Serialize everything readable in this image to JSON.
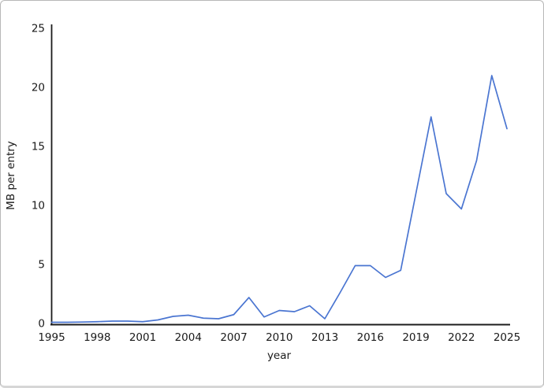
{
  "frame": {
    "background": "#ffffff",
    "border_color": "#b7b7b7"
  },
  "chart_data": {
    "type": "line",
    "title": "",
    "xlabel": "year",
    "ylabel": "MB per entry",
    "x": [
      1995,
      1996,
      1997,
      1998,
      1999,
      2000,
      2001,
      2002,
      2003,
      2004,
      2005,
      2006,
      2007,
      2008,
      2009,
      2010,
      2011,
      2012,
      2013,
      2014,
      2015,
      2016,
      2017,
      2018,
      2019,
      2020,
      2021,
      2022,
      2023,
      2024,
      2025
    ],
    "values": [
      0.1,
      0.1,
      0.12,
      0.15,
      0.2,
      0.2,
      0.15,
      0.3,
      0.6,
      0.7,
      0.45,
      0.4,
      0.75,
      2.2,
      0.55,
      1.1,
      1.0,
      1.5,
      0.4,
      2.6,
      4.9,
      4.9,
      3.9,
      4.5,
      11.0,
      17.5,
      11.0,
      9.7,
      13.8,
      21.0,
      16.5
    ],
    "xlim": [
      1995,
      2025
    ],
    "ylim": [
      0,
      25
    ],
    "xticks": [
      1995,
      1998,
      2001,
      2004,
      2007,
      2010,
      2013,
      2016,
      2019,
      2022,
      2025
    ],
    "yticks": [
      0,
      5,
      10,
      15,
      20,
      25
    ],
    "grid": false,
    "legend_position": "none",
    "line_color": "#4a75d1",
    "axis_color": "#1c1c1c",
    "tick_label_color": "#1a1a1a"
  }
}
